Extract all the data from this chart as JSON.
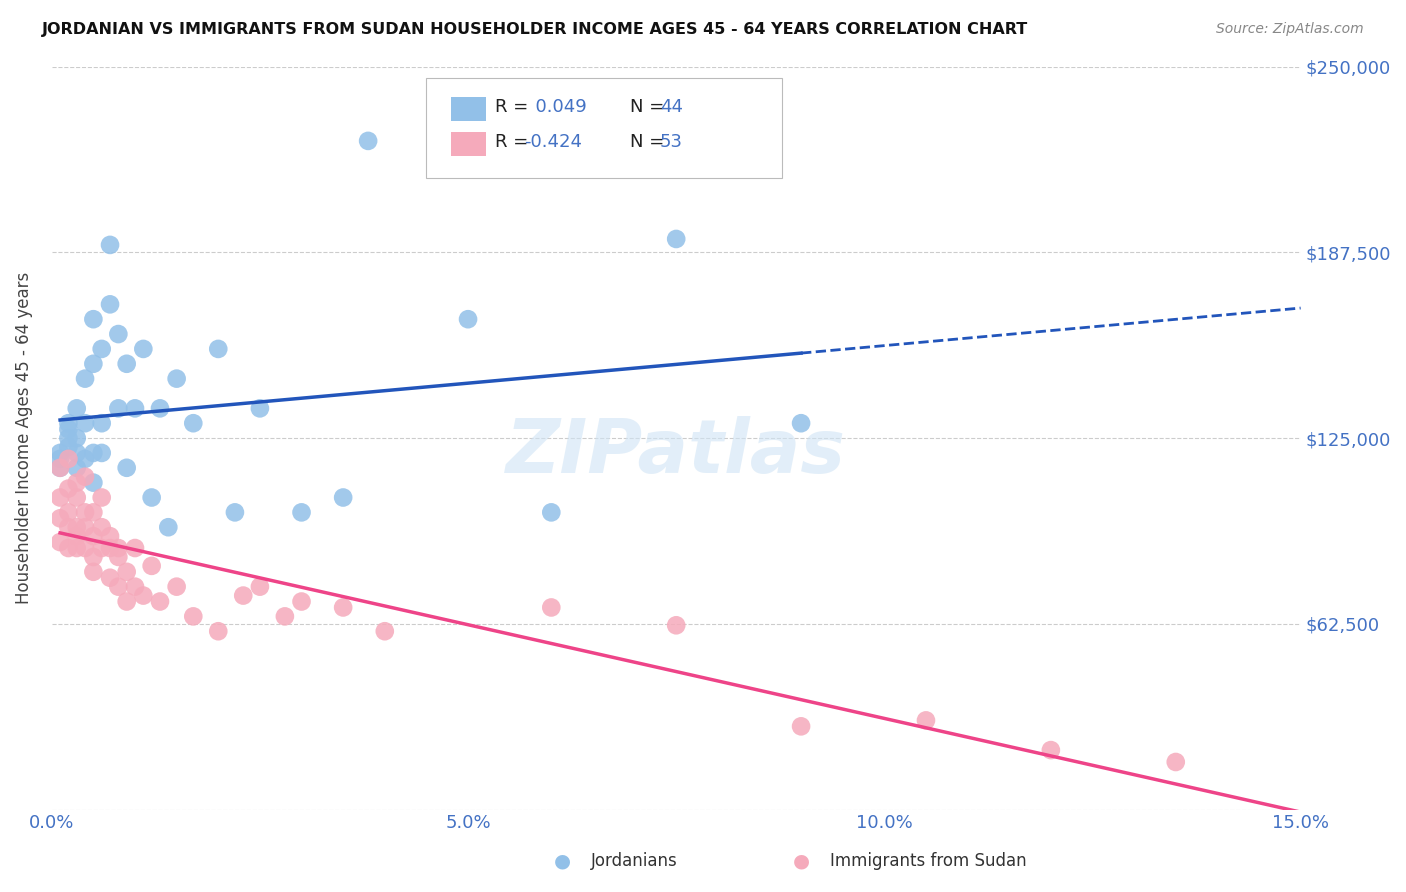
{
  "title": "JORDANIAN VS IMMIGRANTS FROM SUDAN HOUSEHOLDER INCOME AGES 45 - 64 YEARS CORRELATION CHART",
  "source": "Source: ZipAtlas.com",
  "ylabel": "Householder Income Ages 45 - 64 years",
  "xlim": [
    0.0,
    0.15
  ],
  "ylim": [
    0,
    250000
  ],
  "yticks": [
    0,
    62500,
    125000,
    187500,
    250000
  ],
  "ytick_labels": [
    "",
    "$62,500",
    "$125,000",
    "$187,500",
    "$250,000"
  ],
  "xtick_vals": [
    0.0,
    0.05,
    0.1,
    0.15
  ],
  "xtick_labels": [
    "0.0%",
    "5.0%",
    "10.0%",
    "15.0%"
  ],
  "legend_label_blue": "Jordanians",
  "legend_label_pink": "Immigrants from Sudan",
  "legend_r_blue": " 0.049",
  "legend_n_blue": "44",
  "legend_r_pink": "-0.424",
  "legend_n_pink": "53",
  "color_blue": "#92C0E8",
  "color_pink": "#F5AABB",
  "color_blue_line": "#2255BB",
  "color_pink_line": "#EE4488",
  "color_axis_val": "#4472C4",
  "watermark": "ZIPatlas",
  "background_color": "#FFFFFF",
  "jordanians_x": [
    0.001,
    0.001,
    0.001,
    0.002,
    0.002,
    0.002,
    0.002,
    0.003,
    0.003,
    0.003,
    0.003,
    0.004,
    0.004,
    0.004,
    0.005,
    0.005,
    0.005,
    0.005,
    0.006,
    0.006,
    0.006,
    0.007,
    0.007,
    0.008,
    0.008,
    0.009,
    0.009,
    0.01,
    0.011,
    0.012,
    0.013,
    0.014,
    0.015,
    0.017,
    0.02,
    0.022,
    0.025,
    0.03,
    0.035,
    0.038,
    0.05,
    0.06,
    0.075,
    0.09
  ],
  "jordanians_y": [
    120000,
    115000,
    118000,
    122000,
    128000,
    125000,
    130000,
    115000,
    120000,
    125000,
    135000,
    145000,
    118000,
    130000,
    150000,
    165000,
    120000,
    110000,
    155000,
    130000,
    120000,
    190000,
    170000,
    160000,
    135000,
    150000,
    115000,
    135000,
    155000,
    105000,
    135000,
    95000,
    145000,
    130000,
    155000,
    100000,
    135000,
    100000,
    105000,
    225000,
    165000,
    100000,
    192000,
    130000
  ],
  "sudan_x": [
    0.001,
    0.001,
    0.001,
    0.001,
    0.002,
    0.002,
    0.002,
    0.002,
    0.002,
    0.003,
    0.003,
    0.003,
    0.003,
    0.003,
    0.004,
    0.004,
    0.004,
    0.004,
    0.005,
    0.005,
    0.005,
    0.005,
    0.006,
    0.006,
    0.006,
    0.007,
    0.007,
    0.007,
    0.008,
    0.008,
    0.008,
    0.009,
    0.009,
    0.01,
    0.01,
    0.011,
    0.012,
    0.013,
    0.015,
    0.017,
    0.02,
    0.023,
    0.025,
    0.028,
    0.03,
    0.035,
    0.04,
    0.06,
    0.075,
    0.09,
    0.105,
    0.12,
    0.135
  ],
  "sudan_y": [
    105000,
    98000,
    115000,
    90000,
    108000,
    95000,
    118000,
    100000,
    88000,
    110000,
    95000,
    88000,
    105000,
    92000,
    100000,
    112000,
    88000,
    95000,
    92000,
    80000,
    100000,
    85000,
    95000,
    88000,
    105000,
    88000,
    78000,
    92000,
    85000,
    75000,
    88000,
    80000,
    70000,
    88000,
    75000,
    72000,
    82000,
    70000,
    75000,
    65000,
    60000,
    72000,
    75000,
    65000,
    70000,
    68000,
    60000,
    68000,
    62000,
    28000,
    30000,
    20000,
    16000
  ]
}
